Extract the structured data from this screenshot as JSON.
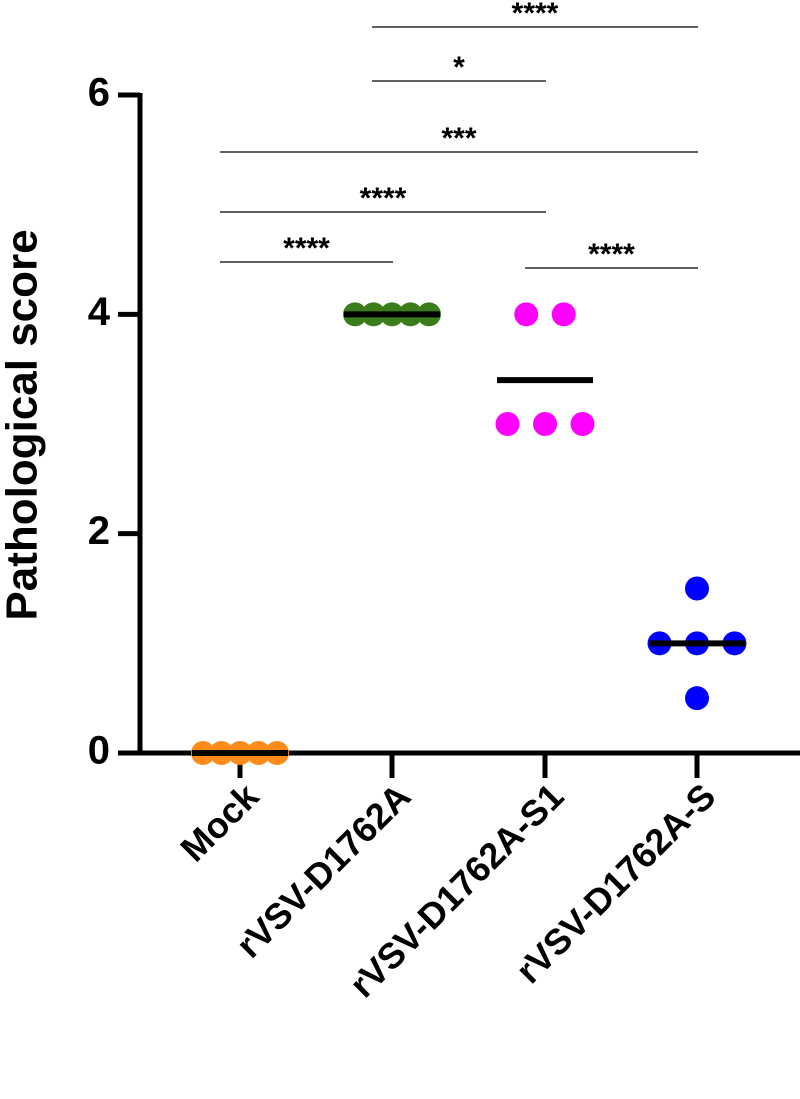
{
  "chart_data": {
    "type": "dot",
    "ylabel": "Pathological score",
    "categories": [
      "Mock",
      "rVSV-D1762A",
      "rVSV-D1762A-S1",
      "rVSV-D1762A-S"
    ],
    "values": [
      [
        0,
        0,
        0,
        0,
        0
      ],
      [
        4,
        4,
        4,
        4,
        4
      ],
      [
        4,
        4,
        3,
        3,
        3
      ],
      [
        1.5,
        1,
        1,
        1,
        0.5
      ]
    ],
    "means": [
      0,
      4,
      3.4,
      1
    ],
    "colors": [
      "#ff8c1a",
      "#3a7d1a",
      "#ff00ff",
      "#0000ff"
    ],
    "ylim": [
      0,
      6
    ],
    "yticks": [
      0,
      2,
      4,
      6
    ],
    "comparisons": [
      {
        "pair": [
          0,
          1
        ],
        "label": "****"
      },
      {
        "pair": [
          0,
          2
        ],
        "label": "****"
      },
      {
        "pair": [
          0,
          3
        ],
        "label": "***"
      },
      {
        "pair": [
          2,
          3
        ],
        "label": "****"
      },
      {
        "pair": [
          1,
          2
        ],
        "label": "*"
      },
      {
        "pair": [
          1,
          3
        ],
        "label": "****"
      }
    ]
  }
}
